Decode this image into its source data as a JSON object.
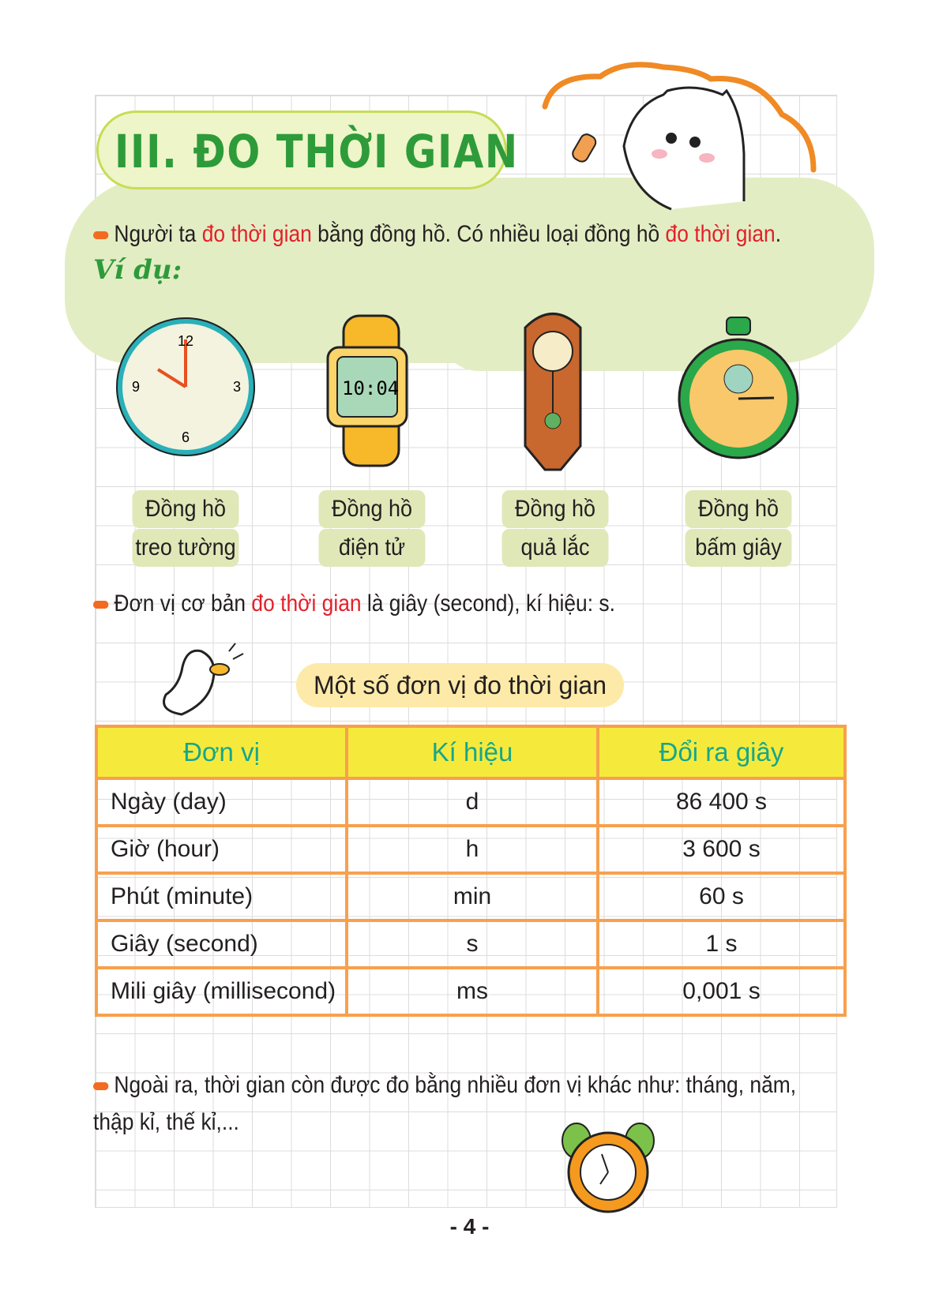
{
  "title": "III. ĐO THỜI GIAN",
  "intro": {
    "p1": "Người ta ",
    "h1": "đo thời gian",
    "p2": " bằng đồng hồ. Có nhiều loại đồng hồ ",
    "h2": "đo thời gian",
    "p3": "."
  },
  "example_label": "Ví dụ:",
  "clocks": [
    {
      "icon": "wall-clock-icon",
      "line1": "Đồng hồ",
      "line2": "treo tường"
    },
    {
      "icon": "digital-watch-icon",
      "line1": "Đồng hồ",
      "line2": "điện tử",
      "display": "10:04"
    },
    {
      "icon": "pendulum-clock-icon",
      "line1": "Đồng hồ",
      "line2": "quả lắc"
    },
    {
      "icon": "stopwatch-icon",
      "line1": "Đồng hồ",
      "line2": "bấm giây"
    }
  ],
  "base_unit": {
    "p1": "Đơn vị cơ bản ",
    "h1": "đo thời gian",
    "p2": " là giây (second), kí hiệu: s."
  },
  "table_heading": "Một số đơn vị đo thời gian",
  "table": {
    "headers": [
      "Đơn vị",
      "Kí hiệu",
      "Đổi ra giây"
    ],
    "rows": [
      [
        "Ngày (day)",
        "d",
        "86 400 s"
      ],
      [
        "Giờ (hour)",
        "h",
        "3 600 s"
      ],
      [
        "Phút (minute)",
        "min",
        "60 s"
      ],
      [
        "Giây (second)",
        "s",
        "1 s"
      ],
      [
        "Mili giây (millisecond)",
        "ms",
        "0,001 s"
      ]
    ]
  },
  "other_units": {
    "line1": "Ngoài ra, thời gian còn được đo bằng nhiều đơn vị khác như: tháng, năm,",
    "line2": "thập kỉ, thế kỉ,..."
  },
  "page_number": "- 4 -",
  "colors": {
    "accent_red": "#e3202a",
    "title_green": "#2e9b3a",
    "table_border": "#f7a04e",
    "table_header": "#f5ea3c",
    "bullet": "#f26b21"
  }
}
